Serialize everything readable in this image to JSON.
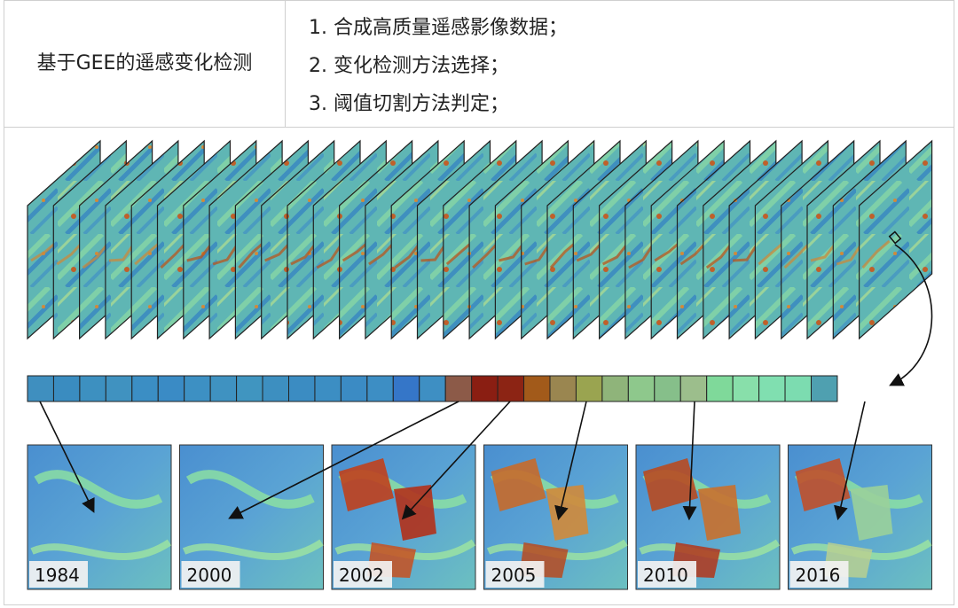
{
  "table": {
    "left_cell": "基于GEE的遥感变化检测",
    "steps": [
      "1. 合成高质量遥感影像数据；",
      "2. 变化检测方法选择；",
      "3. 阈值切割方法判定；"
    ]
  },
  "figure": {
    "stack_layer_count": 33,
    "timeseries_cell_colors": [
      "#3f8fbf",
      "#3a8cc0",
      "#3d90c0",
      "#4092c0",
      "#3b8ec4",
      "#3a8bc5",
      "#3d90c3",
      "#3f92c1",
      "#4095c0",
      "#3d8fc0",
      "#3b8cc2",
      "#3c8ec3",
      "#3b8bc4",
      "#3d8ec4",
      "#3576c8",
      "#3e8fc3",
      "#8c5a48",
      "#8a1e12",
      "#8c2414",
      "#a25a1a",
      "#9a8650",
      "#9aa450",
      "#8fb47a",
      "#8ec88c",
      "#86bf8a",
      "#9cbe8c",
      "#7fd99a",
      "#88dfaa",
      "#80dfb0",
      "#7cdcb0",
      "#4fa0b0"
    ],
    "snapshots": [
      {
        "year": "1984"
      },
      {
        "year": "2000"
      },
      {
        "year": "2002"
      },
      {
        "year": "2005"
      },
      {
        "year": "2010"
      },
      {
        "year": "2016"
      }
    ]
  }
}
